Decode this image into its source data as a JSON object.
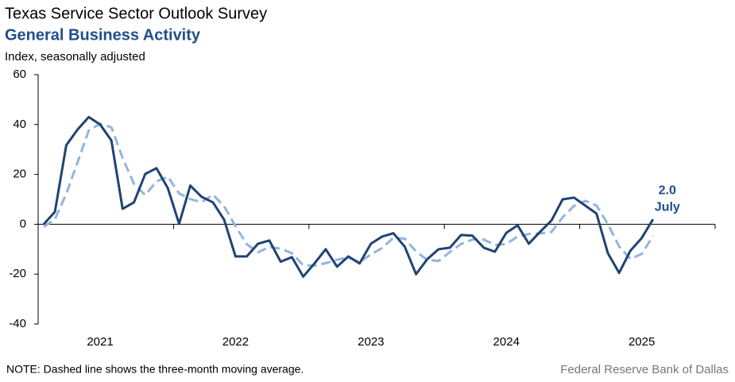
{
  "chart_data": {
    "type": "line",
    "title": "Texas Service Sector Outlook Survey",
    "subtitle": "General Business Activity",
    "ylabel": "Index, seasonally adjusted",
    "note": "NOTE: Dashed line shows the three-month moving average.",
    "source": "Federal Reserve Bank of Dallas",
    "annotations": [
      "2.0",
      "July"
    ],
    "x": [
      2021,
      2021.083,
      2021.167,
      2021.25,
      2021.333,
      2021.417,
      2021.5,
      2021.583,
      2021.667,
      2021.75,
      2021.833,
      2021.917,
      2022,
      2022.083,
      2022.167,
      2022.25,
      2022.333,
      2022.417,
      2022.5,
      2022.583,
      2022.667,
      2022.75,
      2022.833,
      2022.917,
      2023,
      2023.083,
      2023.167,
      2023.25,
      2023.333,
      2023.417,
      2023.5,
      2023.583,
      2023.667,
      2023.75,
      2023.833,
      2023.917,
      2024,
      2024.083,
      2024.167,
      2024.25,
      2024.333,
      2024.417,
      2024.5,
      2024.583,
      2024.667,
      2024.75,
      2024.833,
      2024.917,
      2025,
      2025.083,
      2025.167,
      2025.25,
      2025.333,
      2025.417,
      2025.5
    ],
    "series": [
      {
        "color": "#1f4373",
        "dash": false,
        "values": [
          0,
          5,
          31.7,
          38,
          43,
          40,
          33.6,
          6.2,
          8.8,
          20.2,
          22.5,
          14.5,
          0.2,
          15.5,
          11,
          8.8,
          1.8,
          -12.9,
          -12.9,
          -7.8,
          -6.5,
          -15,
          -13.2,
          -21,
          -15.7,
          -10,
          -17,
          -12.9,
          -15.7,
          -7.8,
          -4.9,
          -3.6,
          -9,
          -20,
          -14,
          -10,
          -9.4,
          -4.3,
          -4.6,
          -9.4,
          -11,
          -3.4,
          -0.4,
          -7.8,
          -3,
          1.5,
          10,
          10.7,
          7.5,
          4.3,
          -11.6,
          -19.5,
          -10.6,
          -5.5,
          2.0
        ]
      },
      {
        "color": "#93b4de",
        "dash": true,
        "values": [
          -1,
          2,
          12.2,
          24.9,
          37.6,
          40.3,
          38.9,
          26.6,
          16.2,
          11.7,
          17.2,
          19.1,
          12.4,
          10.1,
          8.9,
          11.8,
          7.2,
          -0.8,
          -8,
          -11.2,
          -9.1,
          -9.8,
          -11.6,
          -16.4,
          -16.6,
          -15.6,
          -14.2,
          -13.3,
          -15.2,
          -12.1,
          -9.5,
          -5.4,
          -5.8,
          -10.9,
          -14.3,
          -14.7,
          -11.1,
          -7.9,
          -6.1,
          -6.1,
          -8.3,
          -7.9,
          -4.9,
          -3.9,
          -3.7,
          -3.1,
          2.8,
          7.4,
          9.4,
          7.5,
          0.1,
          -8.9,
          -13.9,
          -11.9,
          -4.7
        ]
      }
    ],
    "xlim": [
      2020.959,
      2025.959
    ],
    "xticks": [
      {
        "value": 2021.417,
        "label": "2021"
      },
      {
        "value": 2022.417,
        "label": "2022"
      },
      {
        "value": 2023.417,
        "label": "2023"
      },
      {
        "value": 2024.417,
        "label": "2024"
      },
      {
        "value": 2025.417,
        "label": "2025"
      }
    ],
    "xtick_marks": [
      2020.959,
      2021.959,
      2022.959,
      2023.959,
      2024.959,
      2025.959
    ],
    "ylim": [
      -40,
      60
    ],
    "yticks": [
      -40,
      -20,
      0,
      20,
      40,
      60
    ],
    "grid": false
  }
}
